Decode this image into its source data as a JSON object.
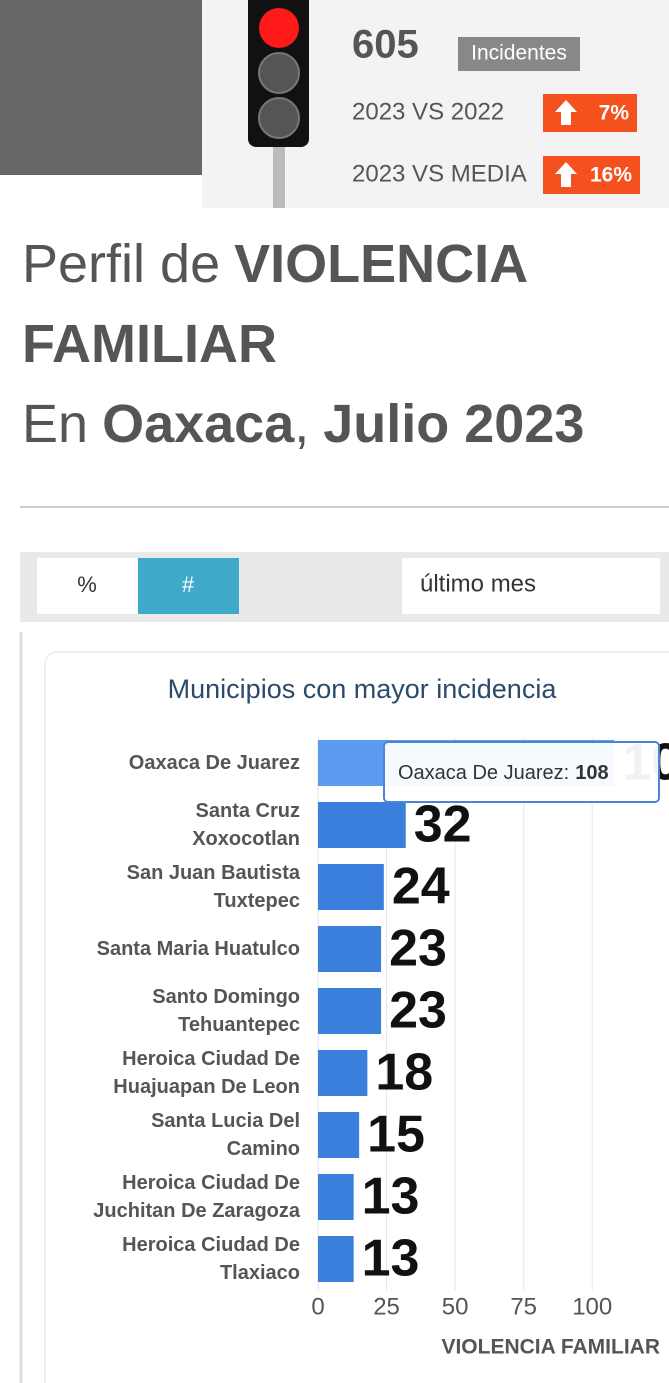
{
  "header": {
    "count": 605,
    "count_label": "Incidentes",
    "comparisons": [
      {
        "label": "2023 VS 2022",
        "change": "7%"
      },
      {
        "label": "2023 VS MEDIA",
        "change": "16%"
      }
    ]
  },
  "title": {
    "parts": [
      "Perfil de",
      "VIOLENCIA",
      "FAMILIAR",
      "En",
      "Oaxaca",
      ",",
      "Julio 2023"
    ]
  },
  "controls": {
    "toggle": [
      "%",
      "#"
    ],
    "active": 1,
    "period": "último mes"
  },
  "chart_data": {
    "type": "bar",
    "orientation": "horizontal",
    "title": "Municipios con mayor incidencia",
    "x_label": "VIOLENCIA FAMILIAR",
    "categories": [
      "Oaxaca De Juarez",
      "Santa Cruz Xoxocotlan",
      "San Juan Bautista Tuxtepec",
      "Santa Maria Huatulco",
      "Santo Domingo Tehuantepec",
      "Heroica Ciudad De Huajuapan De Leon",
      "Santa Lucia Del Camino",
      "Heroica Ciudad De Juchitan De Zaragoza",
      "Heroica Ciudad De Tlaxiaco"
    ],
    "values": [
      108,
      32,
      24,
      23,
      23,
      18,
      15,
      13,
      13
    ],
    "color": "#3a7fdc",
    "highlight_color": "#5b9cf0",
    "xlim": [
      0,
      128
    ],
    "xticks": [
      0,
      25,
      50,
      75,
      100
    ],
    "grid": true,
    "tooltip": {
      "label": "Oaxaca De Juarez:",
      "value": 108
    }
  }
}
